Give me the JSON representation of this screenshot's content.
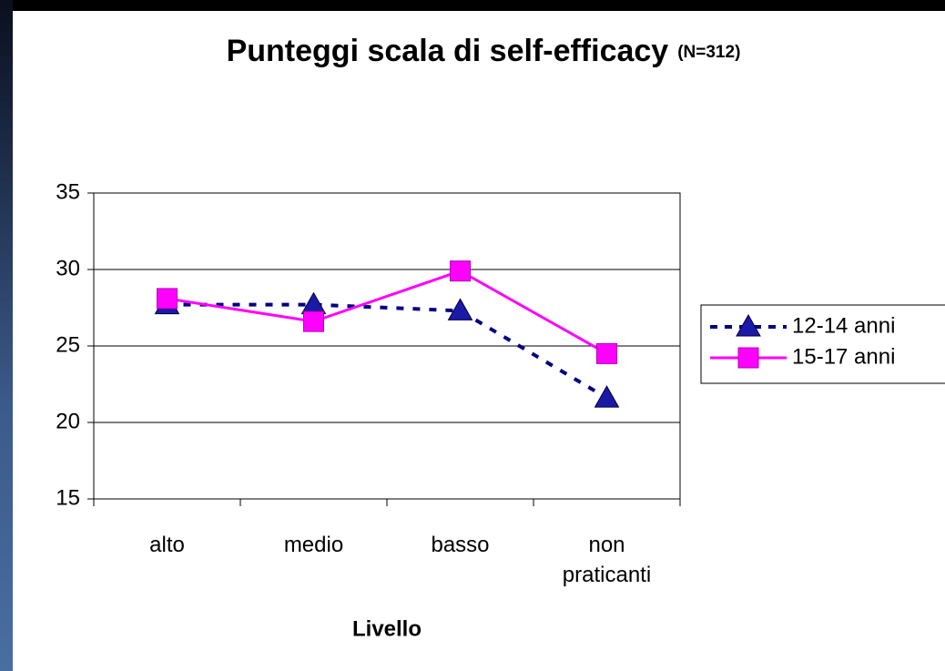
{
  "chart_data": {
    "type": "line",
    "title": "Punteggi scala di self-efficacy",
    "subtitle": "(N=312)",
    "x_label": "Livello",
    "categories": [
      "alto",
      "medio",
      "basso",
      "non praticanti"
    ],
    "series": [
      {
        "name": "12-14 anni",
        "color": "#000080",
        "marker_color": "#1a1aa6",
        "marker": "triangle",
        "dash": true,
        "values": [
          27.7,
          27.7,
          27.3,
          21.6
        ]
      },
      {
        "name": "15-17 anni",
        "color": "#ff00ff",
        "marker_color": "#ff00ff",
        "marker": "square",
        "dash": false,
        "values": [
          28.1,
          26.6,
          29.9,
          24.5
        ]
      }
    ],
    "ylim": [
      15,
      35
    ],
    "yticks": [
      15,
      20,
      25,
      30,
      35
    ],
    "grid": true,
    "legend": "right"
  }
}
